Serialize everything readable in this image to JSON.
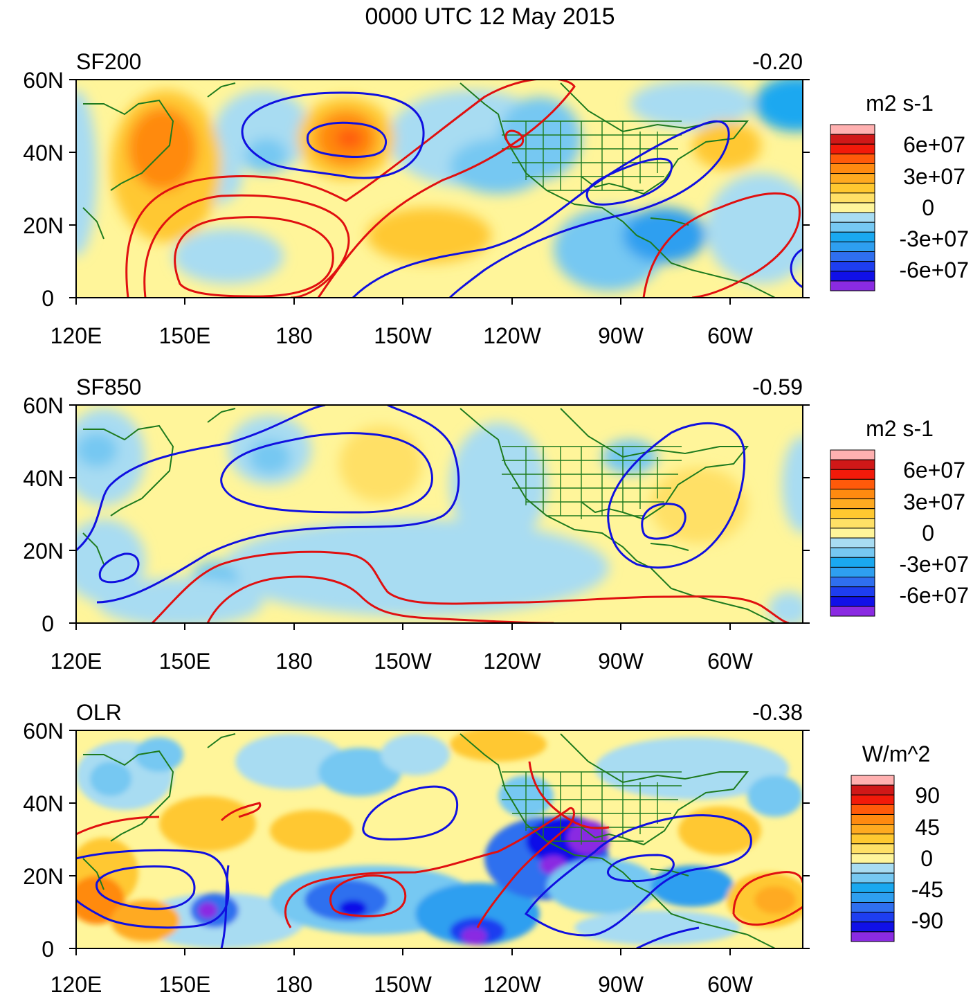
{
  "figure": {
    "title": "0000 UTC 12 May 2015",
    "x_ticks": [
      "120E",
      "150E",
      "180",
      "150W",
      "120W",
      "90W",
      "60W"
    ],
    "y_ticks": [
      "60N",
      "40N",
      "20N",
      "0"
    ]
  },
  "colors": {
    "land_outline": "#1e7a1e",
    "positive_contour": "#e01010",
    "negative_contour": "#1010e0",
    "sf_scale": [
      "#8a2be2",
      "#1010e8",
      "#1e3ef0",
      "#2f6fef",
      "#2e9ff0",
      "#1aa8f0",
      "#76c8f2",
      "#a8dcf2",
      "#fff59a",
      "#ffe066",
      "#ffc830",
      "#ffaa20",
      "#ff8a10",
      "#ff5a0a",
      "#f21a0a",
      "#d01818",
      "#ffb0b0"
    ]
  },
  "panels": [
    {
      "id": "sf200",
      "label": "SF200",
      "value": "-0.20",
      "units": "m2 s-1",
      "colorbar_labels": [
        "6e+07",
        "3e+07",
        "0",
        "-3e+07",
        "-6e+07"
      ]
    },
    {
      "id": "sf850",
      "label": "SF850",
      "value": "-0.59",
      "units": "m2 s-1",
      "colorbar_labels": [
        "6e+07",
        "3e+07",
        "0",
        "-3e+07",
        "-6e+07"
      ]
    },
    {
      "id": "olr",
      "label": "OLR",
      "value": "-0.38",
      "units": "W/m^2",
      "colorbar_labels": [
        "90",
        "45",
        "0",
        "-45",
        "-90"
      ]
    }
  ]
}
